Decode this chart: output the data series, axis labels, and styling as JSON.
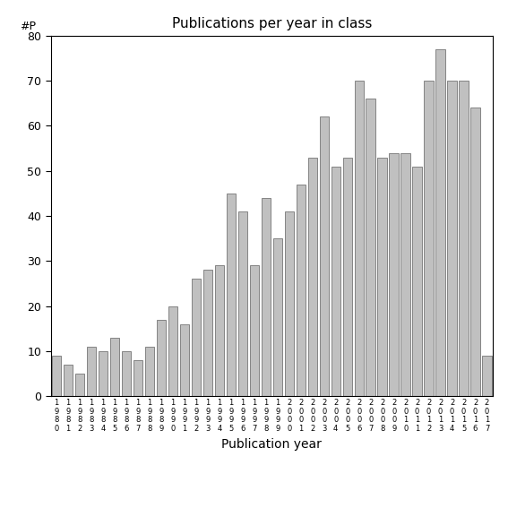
{
  "title": "Publications per year in class",
  "xlabel": "Publication year",
  "ylabel_label": "#P",
  "years": [
    "1980",
    "1981",
    "1982",
    "1983",
    "1984",
    "1985",
    "1986",
    "1987",
    "1988",
    "1989",
    "1990",
    "1991",
    "1992",
    "1993",
    "1994",
    "1995",
    "1996",
    "1997",
    "1998",
    "1999",
    "2000",
    "2001",
    "2002",
    "2003",
    "2004",
    "2005",
    "2006",
    "2007",
    "2008",
    "2009",
    "2010",
    "2011",
    "2012",
    "2013",
    "2014",
    "2015",
    "2016",
    "2017"
  ],
  "values": [
    9,
    7,
    5,
    11,
    10,
    13,
    10,
    8,
    11,
    17,
    20,
    16,
    26,
    28,
    29,
    45,
    41,
    29,
    44,
    35,
    41,
    47,
    53,
    62,
    51,
    53,
    70,
    66,
    53,
    54,
    54,
    51,
    70,
    77,
    70,
    70,
    64,
    9
  ],
  "bar_color": "#c0c0c0",
  "bar_edgecolor": "#606060",
  "bg_color": "#ffffff",
  "ylim": [
    0,
    80
  ],
  "yticks": [
    0,
    10,
    20,
    30,
    40,
    50,
    60,
    70,
    80
  ],
  "title_fontsize": 11,
  "xlabel_fontsize": 10,
  "ytick_fontsize": 9,
  "xtick_fontsize": 6
}
